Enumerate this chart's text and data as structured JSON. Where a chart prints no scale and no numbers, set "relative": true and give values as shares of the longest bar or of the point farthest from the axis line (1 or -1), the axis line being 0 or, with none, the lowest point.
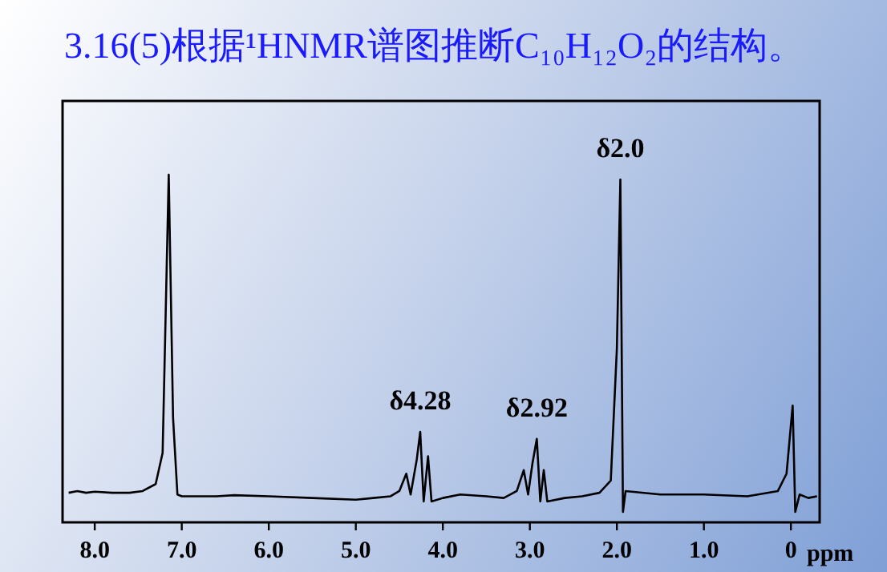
{
  "chart_data": {
    "type": "line",
    "title": "3.16(5)根据¹HNMR谱图推断C₁₀H₁₂O₂的结构。",
    "xlabel": "ppm",
    "relative": true,
    "color": "#000000",
    "x": [
      8.3,
      8.2,
      8.1,
      8.0,
      7.8,
      7.6,
      7.45,
      7.3,
      7.22,
      7.15,
      7.1,
      7.05,
      7.0,
      6.6,
      6.4,
      6.0,
      5.5,
      5.0,
      4.8,
      4.6,
      4.5,
      4.42,
      4.37,
      4.3,
      4.26,
      4.22,
      4.17,
      4.13,
      4.0,
      3.8,
      3.5,
      3.3,
      3.15,
      3.07,
      3.02,
      2.97,
      2.92,
      2.88,
      2.84,
      2.8,
      2.6,
      2.4,
      2.2,
      2.07,
      2.0,
      1.96,
      1.93,
      1.9,
      1.5,
      1.0,
      0.5,
      0.15,
      0.05,
      -0.02,
      -0.05,
      -0.1,
      -0.2,
      -0.3
    ],
    "values": [
      0.085,
      0.09,
      0.085,
      0.088,
      0.085,
      0.085,
      0.09,
      0.11,
      0.2,
      1.0,
      0.3,
      0.08,
      0.075,
      0.075,
      0.078,
      0.075,
      0.07,
      0.065,
      0.07,
      0.075,
      0.09,
      0.14,
      0.08,
      0.18,
      0.26,
      0.06,
      0.19,
      0.06,
      0.07,
      0.08,
      0.075,
      0.07,
      0.09,
      0.15,
      0.08,
      0.17,
      0.24,
      0.06,
      0.15,
      0.06,
      0.07,
      0.075,
      0.085,
      0.12,
      0.5,
      0.986,
      0.03,
      0.09,
      0.08,
      0.08,
      0.075,
      0.09,
      0.14,
      0.336,
      0.03,
      0.08,
      0.07,
      0.075
    ],
    "xlim": [
      8.37,
      -0.33
    ],
    "xticks": [
      {
        "value": 8,
        "label": "8.0"
      },
      {
        "value": 7,
        "label": "7.0"
      },
      {
        "value": 6,
        "label": "6.0"
      },
      {
        "value": 5,
        "label": "5.0"
      },
      {
        "value": 4,
        "label": "4.0"
      },
      {
        "value": 3,
        "label": "3.0"
      },
      {
        "value": 2,
        "label": "2.0"
      },
      {
        "value": 1,
        "label": "1.0"
      },
      0
    ],
    "annotations": [
      {
        "text": "δ4.28",
        "x": 4.26,
        "y": 0.26
      },
      {
        "text": "δ2.92",
        "x": 2.92,
        "y": 0.24
      },
      {
        "text": "δ2.0",
        "x": 1.96,
        "y": 0.986
      }
    ]
  }
}
